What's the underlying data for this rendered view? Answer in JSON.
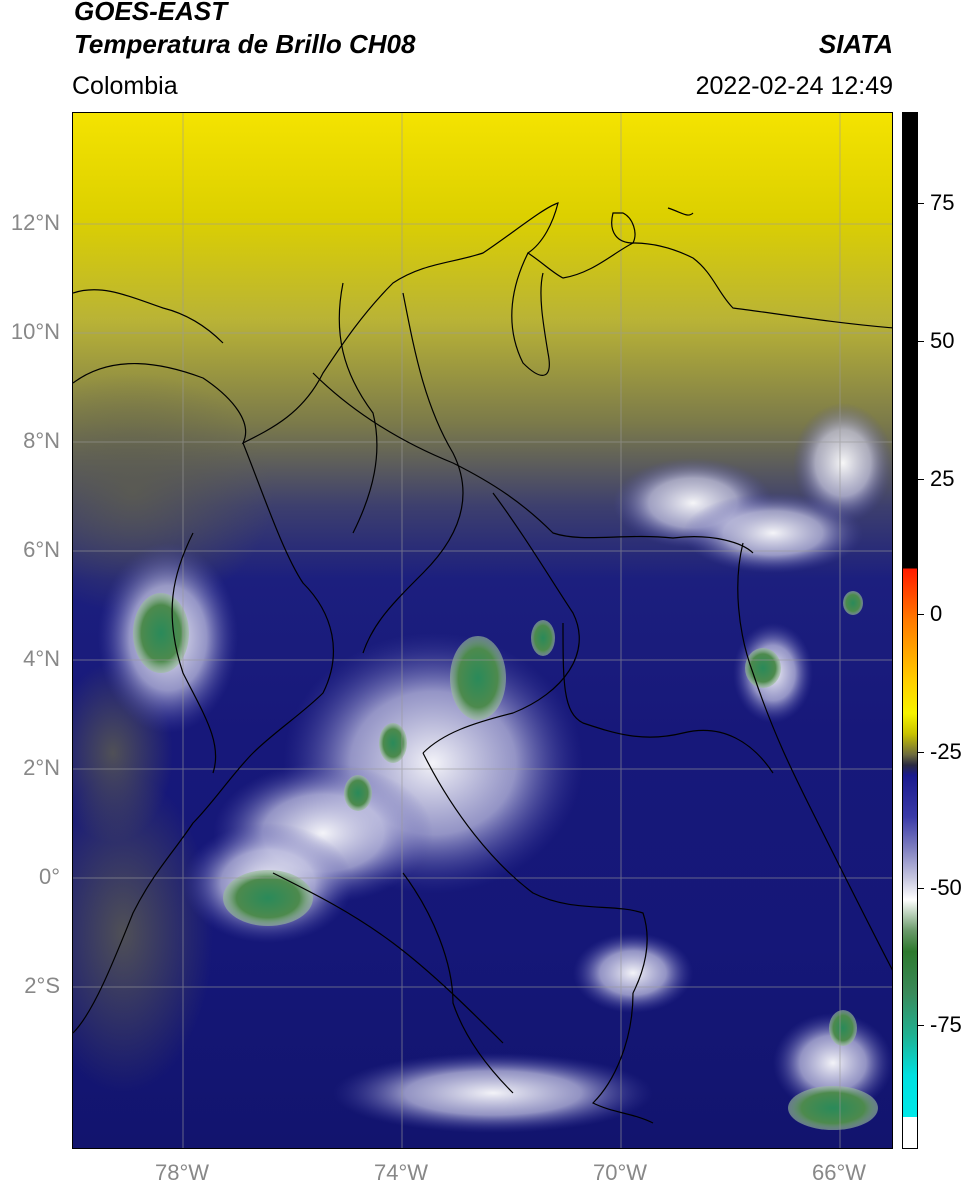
{
  "header": {
    "title_line1": "GOES-EAST",
    "title_line2": "Temperatura de Brillo CH08",
    "region": "Colombia",
    "source": "SIATA",
    "datetime": "2022-02-24 12:49"
  },
  "axes": {
    "lat_ticks": [
      "12°N",
      "10°N",
      "8°N",
      "6°N",
      "4°N",
      "2°N",
      "0°",
      "2°S"
    ],
    "lon_ticks": [
      "78°W",
      "74°W",
      "70°W",
      "66°W"
    ]
  },
  "colorbar": {
    "ticks": [
      "75",
      "50",
      "25",
      "0",
      "-25",
      "-50",
      "-75"
    ],
    "colors": {
      "warm": "#000000",
      "hot": "#ff1a00",
      "yellow": "#f7f300",
      "navy": "#1a1a8e",
      "white": "#ffffff",
      "green": "#2e7a2e",
      "cyan": "#00e8e8"
    }
  }
}
